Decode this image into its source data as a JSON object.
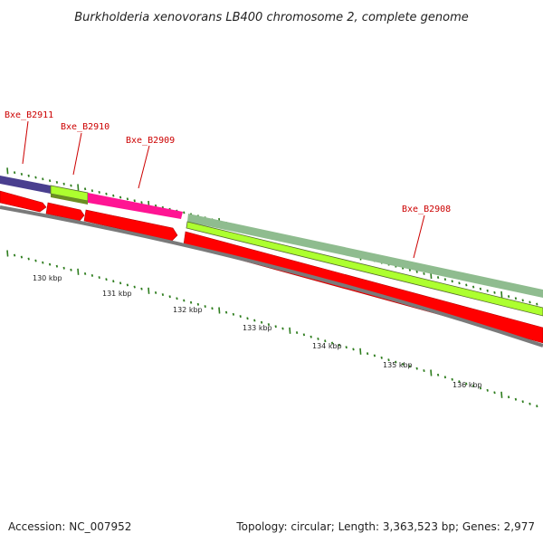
{
  "title": "Burkholderia xenovorans LB400 chromosome 2, complete genome",
  "colors": {
    "gene_label": "#cc0000",
    "tick": "#2e7d1e",
    "backbone": "#808080",
    "cds_arrow": "#ff0000",
    "purple_gene": "#4a3f8f",
    "green_gene": "#adff2f",
    "magenta_gene": "#ff1493",
    "gray_green_gene": "#8fbc8f"
  },
  "gene_labels": [
    {
      "id": "Bxe_B2911",
      "text": "Bxe_B2911"
    },
    {
      "id": "Bxe_B2910",
      "text": "Bxe_B2910"
    },
    {
      "id": "Bxe_B2909",
      "text": "Bxe_B2909"
    },
    {
      "id": "Bxe_B2908",
      "text": "Bxe_B2908"
    }
  ],
  "scale_labels": [
    "130 kbp",
    "131 kbp",
    "132 kbp",
    "133 kbp",
    "134 kbp",
    "135 kbp",
    "136 kbp"
  ],
  "footer": {
    "accession": "Accession: NC_007952",
    "stats": "Topology: circular; Length: 3,363,523 bp; Genes: 2,977"
  }
}
